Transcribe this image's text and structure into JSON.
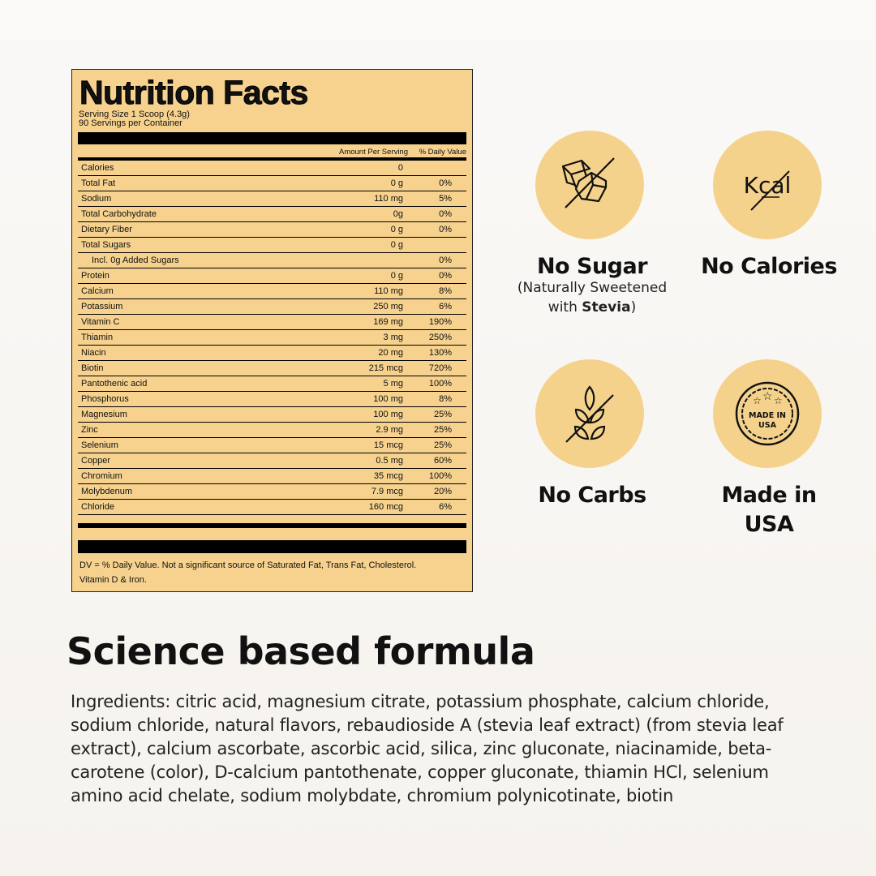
{
  "label": {
    "title": "Nutrition Facts",
    "serving_size": "Serving Size 1 Scoop (4.3g)",
    "servings": "90 Servings per Container",
    "col_amount": "Amount Per Serving",
    "col_dv": "% Daily Value",
    "rows": [
      {
        "name": "Calories",
        "amount": "0",
        "dv": ""
      },
      {
        "name": "Total Fat",
        "amount": "0 g",
        "dv": "0%"
      },
      {
        "name": "Sodium",
        "amount": "110 mg",
        "dv": "5%"
      },
      {
        "name": "Total Carbohydrate",
        "amount": "0g",
        "dv": "0%"
      },
      {
        "name": "Dietary Fiber",
        "amount": "0 g",
        "dv": "0%"
      },
      {
        "name": "Total Sugars",
        "amount": "0 g",
        "dv": ""
      },
      {
        "name": "Incl. 0g Added Sugars",
        "amount": "",
        "dv": "0%",
        "indent": true
      },
      {
        "name": "Protein",
        "amount": "0 g",
        "dv": "0%"
      },
      {
        "name": "Calcium",
        "amount": "110 mg",
        "dv": "8%"
      },
      {
        "name": "Potassium",
        "amount": "250 mg",
        "dv": "6%"
      },
      {
        "name": "Vitamin C",
        "amount": "169 mg",
        "dv": "190%"
      },
      {
        "name": "Thiamin",
        "amount": "3 mg",
        "dv": "250%"
      },
      {
        "name": "Niacin",
        "amount": "20 mg",
        "dv": "130%"
      },
      {
        "name": "Biotin",
        "amount": "215 mcg",
        "dv": "720%"
      },
      {
        "name": "Pantothenic acid",
        "amount": "5 mg",
        "dv": "100%"
      },
      {
        "name": "Phosphorus",
        "amount": "100 mg",
        "dv": "8%"
      },
      {
        "name": "Magnesium",
        "amount": "100 mg",
        "dv": "25%"
      },
      {
        "name": "Zinc",
        "amount": "2.9 mg",
        "dv": "25%"
      },
      {
        "name": "Selenium",
        "amount": "15 mcg",
        "dv": "25%"
      },
      {
        "name": "Copper",
        "amount": "0.5 mg",
        "dv": "60%"
      },
      {
        "name": "Chromium",
        "amount": "35 mcg",
        "dv": "100%"
      },
      {
        "name": "Molybdenum",
        "amount": "7.9 mcg",
        "dv": "20%"
      },
      {
        "name": "Chloride",
        "amount": "160 mcg",
        "dv": "6%"
      }
    ],
    "footer_1": "DV = % Daily Value. Not a significant source of Saturated Fat, Trans Fat, Cholesterol.",
    "footer_2": "Vitamin D & Iron."
  },
  "features": {
    "no_sugar": {
      "title": "No Sugar",
      "sub_1": "(Naturally Sweetened",
      "sub_2a": "with ",
      "sub_2b": "Stevia",
      "sub_2c": ")",
      "icon": "sugar-cubes-crossed-icon"
    },
    "no_calories": {
      "title": "No Calories",
      "icon_text": "Kcal",
      "icon": "kcal-crossed-icon"
    },
    "no_carbs": {
      "title": "No Carbs",
      "icon": "wheat-crossed-icon"
    },
    "made_in_usa": {
      "title_1": "Made in",
      "title_2": "USA",
      "badge_1": "MADE IN",
      "badge_2": "USA",
      "icon": "made-in-usa-badge-icon"
    }
  },
  "colors": {
    "accent": "#f5d28c",
    "label_bg": "#f6d28e"
  },
  "science": {
    "title": "Science based formula",
    "ingredients": "Ingredients: citric acid, magnesium citrate, potassium phosphate, calcium chloride, sodium chloride, natural flavors, rebaudioside A (stevia leaf extract) (from stevia leaf extract), calcium ascorbate, ascorbic acid, silica, zinc gluconate, niacinamide, beta-carotene (color), D-calcium pantothenate, copper gluconate, thiamin HCl, selenium amino acid chelate, sodium molybdate, chromium polynicotinate, biotin"
  }
}
